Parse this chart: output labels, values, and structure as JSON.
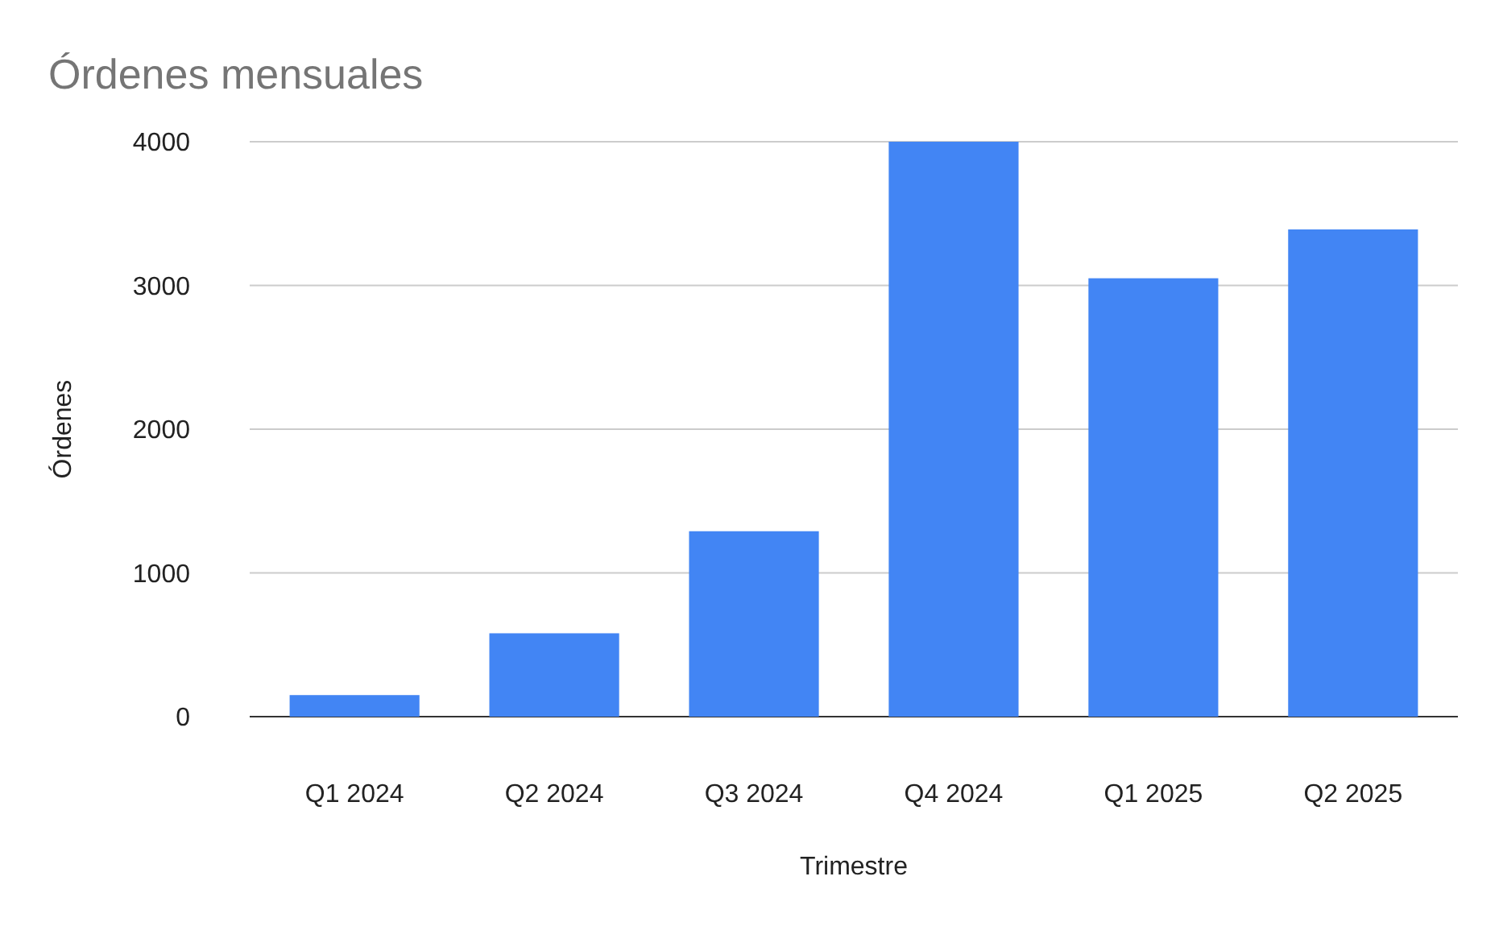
{
  "chart_data": {
    "type": "bar",
    "title": "Órdenes mensuales",
    "xlabel": "Trimestre",
    "ylabel": "Órdenes",
    "categories": [
      "Q1 2024",
      "Q2 2024",
      "Q3 2024",
      "Q4 2024",
      "Q1 2025",
      "Q2 2025"
    ],
    "values": [
      150,
      580,
      1290,
      4000,
      3050,
      3390
    ],
    "color": "#4285f4",
    "ylim": [
      0,
      4000
    ],
    "yticks": [
      0,
      1000,
      2000,
      3000,
      4000
    ],
    "grid": "y"
  }
}
